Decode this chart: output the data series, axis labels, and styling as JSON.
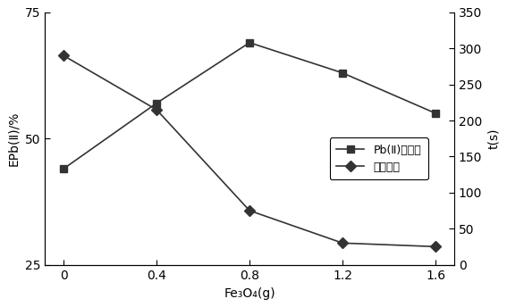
{
  "x": [
    0,
    0.4,
    0.8,
    1.2,
    1.6
  ],
  "removal_rate": [
    44,
    57,
    69,
    63,
    55
  ],
  "sedimentation_time": [
    290,
    215,
    75,
    30,
    25
  ],
  "xlabel": "Fe₃O₄(g)",
  "ylabel_left": "EPb(Ⅱ)/%",
  "ylabel_right": "t(s)",
  "legend1": "Pb(Ⅱ)去除率",
  "legend2": "沉降时间",
  "ylim_left": [
    25,
    75
  ],
  "ylim_right": [
    0,
    350
  ],
  "yticks_left": [
    25,
    50,
    75
  ],
  "yticks_right": [
    0,
    50,
    100,
    150,
    200,
    250,
    300,
    350
  ],
  "xticks": [
    0,
    0.4,
    0.8,
    1.2,
    1.6
  ],
  "color": "#333333",
  "marker_square": "s",
  "marker_diamond": "D",
  "linewidth": 1.2,
  "markersize": 6
}
